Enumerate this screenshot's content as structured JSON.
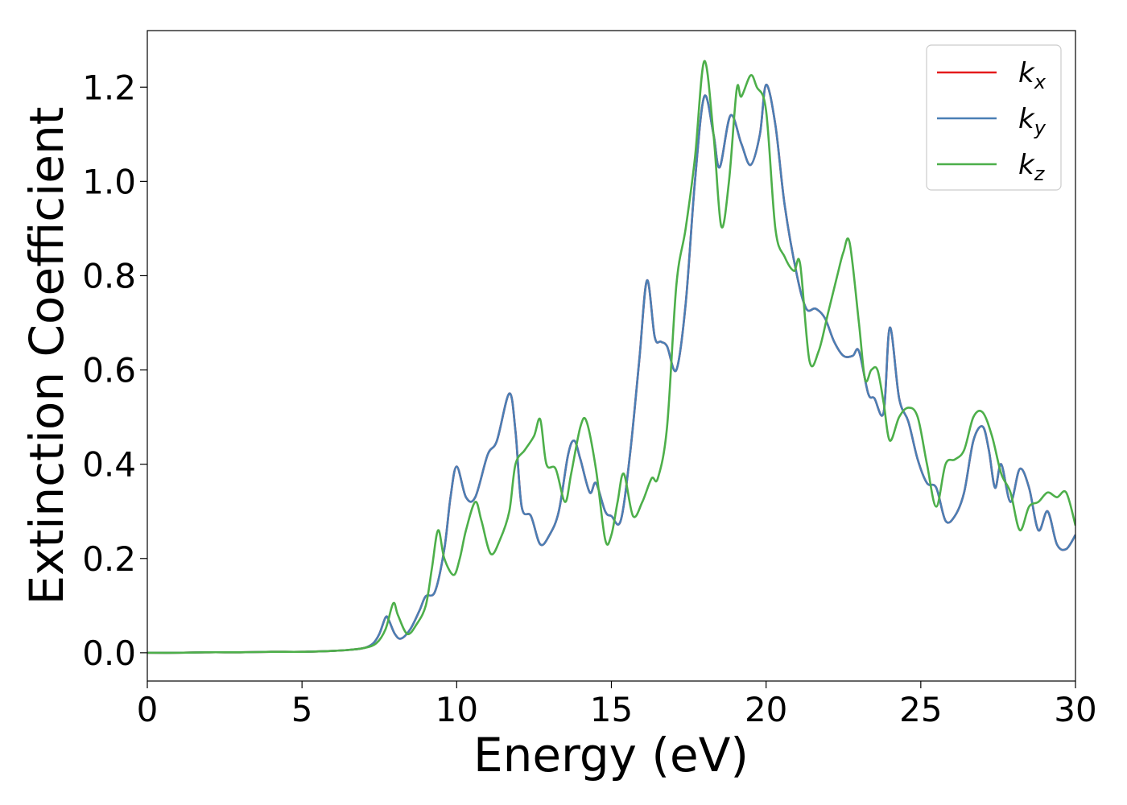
{
  "chart_data": {
    "type": "line",
    "title": "",
    "xlabel": "Energy (eV)",
    "ylabel": "Extinction Coefficient",
    "xlim": [
      0,
      30
    ],
    "ylim": [
      -0.06,
      1.32
    ],
    "xticks": [
      0,
      5,
      10,
      15,
      20,
      25,
      30
    ],
    "yticks": [
      0.0,
      0.2,
      0.4,
      0.6,
      0.8,
      1.0,
      1.2
    ],
    "xtick_labels": [
      "0",
      "5",
      "10",
      "15",
      "20",
      "25",
      "30"
    ],
    "ytick_labels": [
      "0.0",
      "0.2",
      "0.4",
      "0.6",
      "0.8",
      "1.0",
      "1.2"
    ],
    "grid": false,
    "legend_position": "top-right",
    "series": [
      {
        "name": "k",
        "subscript": "x",
        "color": "#e41a1c",
        "x": [
          0,
          1,
          2,
          3,
          4,
          5,
          6,
          6.5,
          7,
          7.3,
          7.5,
          7.7,
          7.8,
          8.0,
          8.2,
          8.5,
          8.8,
          9.0,
          9.3,
          9.6,
          9.8,
          10.0,
          10.3,
          10.6,
          11.0,
          11.3,
          11.7,
          11.9,
          12.1,
          12.4,
          12.7,
          13.0,
          13.3,
          13.6,
          13.8,
          14.0,
          14.3,
          14.5,
          14.8,
          15.0,
          15.3,
          15.6,
          15.9,
          16.15,
          16.4,
          16.6,
          16.8,
          17.1,
          17.4,
          17.7,
          18.0,
          18.3,
          18.5,
          18.85,
          19.2,
          19.5,
          19.8,
          20.0,
          20.3,
          20.6,
          21.0,
          21.3,
          21.6,
          21.9,
          22.2,
          22.5,
          22.8,
          23.0,
          23.3,
          23.5,
          23.8,
          24.0,
          24.3,
          24.6,
          24.9,
          25.2,
          25.5,
          25.8,
          26.1,
          26.4,
          26.7,
          27.0,
          27.2,
          27.4,
          27.6,
          27.9,
          28.2,
          28.5,
          28.8,
          29.1,
          29.4,
          29.7,
          30.0
        ],
        "y": [
          0.0,
          0.0,
          0.001,
          0.001,
          0.002,
          0.002,
          0.004,
          0.006,
          0.01,
          0.02,
          0.04,
          0.075,
          0.07,
          0.04,
          0.03,
          0.05,
          0.09,
          0.12,
          0.13,
          0.22,
          0.33,
          0.395,
          0.33,
          0.33,
          0.42,
          0.45,
          0.55,
          0.47,
          0.31,
          0.29,
          0.23,
          0.25,
          0.3,
          0.42,
          0.45,
          0.41,
          0.34,
          0.36,
          0.3,
          0.29,
          0.28,
          0.42,
          0.62,
          0.79,
          0.67,
          0.66,
          0.65,
          0.6,
          0.74,
          1.0,
          1.18,
          1.1,
          1.03,
          1.14,
          1.08,
          1.035,
          1.1,
          1.205,
          1.12,
          0.95,
          0.8,
          0.73,
          0.73,
          0.71,
          0.66,
          0.63,
          0.63,
          0.64,
          0.55,
          0.54,
          0.51,
          0.69,
          0.54,
          0.49,
          0.41,
          0.36,
          0.35,
          0.28,
          0.29,
          0.34,
          0.45,
          0.48,
          0.43,
          0.35,
          0.4,
          0.32,
          0.39,
          0.35,
          0.26,
          0.3,
          0.23,
          0.22,
          0.25
        ]
      },
      {
        "name": "k",
        "subscript": "y",
        "color": "#4a7fb5",
        "x": [
          0,
          1,
          2,
          3,
          4,
          5,
          6,
          6.5,
          7,
          7.3,
          7.5,
          7.7,
          7.8,
          8.0,
          8.2,
          8.5,
          8.8,
          9.0,
          9.3,
          9.6,
          9.8,
          10.0,
          10.3,
          10.6,
          11.0,
          11.3,
          11.7,
          11.9,
          12.1,
          12.4,
          12.7,
          13.0,
          13.3,
          13.6,
          13.8,
          14.0,
          14.3,
          14.5,
          14.8,
          15.0,
          15.3,
          15.6,
          15.9,
          16.15,
          16.4,
          16.6,
          16.8,
          17.1,
          17.4,
          17.7,
          18.0,
          18.3,
          18.5,
          18.85,
          19.2,
          19.5,
          19.8,
          20.0,
          20.3,
          20.6,
          21.0,
          21.3,
          21.6,
          21.9,
          22.2,
          22.5,
          22.8,
          23.0,
          23.3,
          23.5,
          23.8,
          24.0,
          24.3,
          24.6,
          24.9,
          25.2,
          25.5,
          25.8,
          26.1,
          26.4,
          26.7,
          27.0,
          27.2,
          27.4,
          27.6,
          27.9,
          28.2,
          28.5,
          28.8,
          29.1,
          29.4,
          29.7,
          30.0
        ],
        "y": [
          0.0,
          0.0,
          0.001,
          0.001,
          0.002,
          0.002,
          0.004,
          0.006,
          0.01,
          0.02,
          0.04,
          0.075,
          0.07,
          0.04,
          0.03,
          0.05,
          0.09,
          0.12,
          0.13,
          0.22,
          0.33,
          0.395,
          0.33,
          0.33,
          0.42,
          0.45,
          0.55,
          0.47,
          0.31,
          0.29,
          0.23,
          0.25,
          0.3,
          0.42,
          0.45,
          0.41,
          0.34,
          0.36,
          0.3,
          0.29,
          0.28,
          0.42,
          0.62,
          0.79,
          0.67,
          0.66,
          0.65,
          0.6,
          0.74,
          1.0,
          1.18,
          1.1,
          1.03,
          1.14,
          1.08,
          1.035,
          1.1,
          1.205,
          1.12,
          0.95,
          0.8,
          0.73,
          0.73,
          0.71,
          0.66,
          0.63,
          0.63,
          0.64,
          0.55,
          0.54,
          0.51,
          0.69,
          0.54,
          0.49,
          0.41,
          0.36,
          0.35,
          0.28,
          0.29,
          0.34,
          0.45,
          0.48,
          0.43,
          0.35,
          0.4,
          0.32,
          0.39,
          0.35,
          0.26,
          0.3,
          0.23,
          0.22,
          0.25
        ]
      },
      {
        "name": "k",
        "subscript": "z",
        "color": "#4daf4a",
        "x": [
          0,
          1,
          2,
          3,
          4,
          5,
          6,
          6.5,
          7,
          7.4,
          7.7,
          7.95,
          8.1,
          8.4,
          8.7,
          9.0,
          9.2,
          9.4,
          9.6,
          9.9,
          10.1,
          10.3,
          10.6,
          10.8,
          11.1,
          11.4,
          11.7,
          11.9,
          12.2,
          12.5,
          12.7,
          12.9,
          13.2,
          13.5,
          13.7,
          14.0,
          14.2,
          14.5,
          14.8,
          15.0,
          15.2,
          15.4,
          15.7,
          16.0,
          16.3,
          16.5,
          16.8,
          17.1,
          17.4,
          17.7,
          18.0,
          18.3,
          18.55,
          18.8,
          19.05,
          19.2,
          19.5,
          19.7,
          20.0,
          20.3,
          20.6,
          20.9,
          21.1,
          21.4,
          21.7,
          22.0,
          22.3,
          22.5,
          22.7,
          23.0,
          23.2,
          23.4,
          23.6,
          23.8,
          24.0,
          24.3,
          24.6,
          24.9,
          25.2,
          25.5,
          25.8,
          26.1,
          26.4,
          26.7,
          27.0,
          27.3,
          27.6,
          27.9,
          28.2,
          28.5,
          28.8,
          29.1,
          29.4,
          29.7,
          30.0
        ],
        "y": [
          0.0,
          0.0,
          0.001,
          0.001,
          0.002,
          0.002,
          0.004,
          0.006,
          0.01,
          0.02,
          0.05,
          0.105,
          0.08,
          0.04,
          0.06,
          0.1,
          0.18,
          0.26,
          0.2,
          0.165,
          0.2,
          0.26,
          0.32,
          0.28,
          0.21,
          0.24,
          0.3,
          0.4,
          0.43,
          0.46,
          0.495,
          0.4,
          0.39,
          0.32,
          0.38,
          0.48,
          0.49,
          0.39,
          0.24,
          0.25,
          0.32,
          0.38,
          0.29,
          0.32,
          0.37,
          0.37,
          0.48,
          0.78,
          0.9,
          1.05,
          1.255,
          1.1,
          0.905,
          1.0,
          1.195,
          1.18,
          1.225,
          1.2,
          1.15,
          0.9,
          0.84,
          0.81,
          0.825,
          0.62,
          0.64,
          0.72,
          0.8,
          0.85,
          0.87,
          0.7,
          0.58,
          0.6,
          0.6,
          0.53,
          0.45,
          0.5,
          0.52,
          0.5,
          0.4,
          0.31,
          0.4,
          0.41,
          0.43,
          0.5,
          0.51,
          0.46,
          0.38,
          0.34,
          0.26,
          0.31,
          0.32,
          0.34,
          0.33,
          0.34,
          0.27
        ]
      }
    ]
  }
}
